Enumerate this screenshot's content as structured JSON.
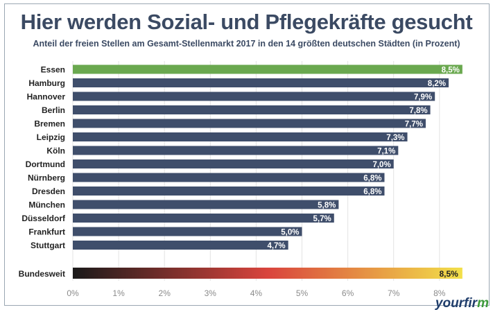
{
  "chart_data": {
    "type": "bar",
    "orientation": "horizontal",
    "title": "Hier werden Sozial- und Pflegekräfte gesucht",
    "subtitle": "Anteil der freien Stellen am Gesamt-Stellenmarkt 2017 in den 14 größten deutschen  Städten (in Prozent)",
    "categories": [
      "Essen",
      "Hamburg",
      "Hannover",
      "Berlin",
      "Bremen",
      "Leipzig",
      "Köln",
      "Dortmund",
      "Nürnberg",
      "Dresden",
      "München",
      "Düsseldorf",
      "Frankfurt",
      "Stuttgart"
    ],
    "values": [
      8.5,
      8.2,
      7.9,
      7.8,
      7.7,
      7.3,
      7.1,
      7.0,
      6.8,
      6.8,
      5.8,
      5.7,
      5.0,
      4.7
    ],
    "data_labels": [
      "8,5%",
      "8,2%",
      "7,9%",
      "7,8%",
      "7,7%",
      "7,3%",
      "7,1%",
      "7,0%",
      "6,8%",
      "6,8%",
      "5,8%",
      "5,7%",
      "5,0%",
      "4,7%"
    ],
    "highlight": {
      "category": "Essen",
      "color": "#6aa84f"
    },
    "bar_color": "#3f4e6b",
    "summary": {
      "category": "Bundesweit",
      "value": 8.5,
      "label": "8,5%",
      "gradient": [
        "#1a1a1a",
        "#d9443d",
        "#f2e04a"
      ]
    },
    "xlim": [
      0,
      8.5
    ],
    "xticks": [
      "0%",
      "1%",
      "2%",
      "3%",
      "4%",
      "5%",
      "6%",
      "7%",
      "8%"
    ],
    "grid": true,
    "legend": "none"
  },
  "logo": {
    "text_main": "yourfir",
    "text_accent": "m"
  }
}
